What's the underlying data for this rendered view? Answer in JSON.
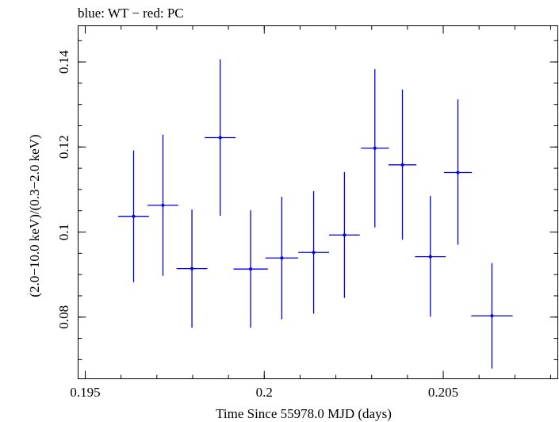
{
  "chart_data": {
    "type": "scatter",
    "title": "blue: WT − red: PC",
    "xlabel": "Time Since 55978.0 MJD (days)",
    "ylabel": "(2.0−10.0 keV)/(0.3−2.0 keV)",
    "xlim": [
      0.1948,
      0.2082
    ],
    "ylim": [
      0.0655,
      0.1485
    ],
    "x_ticks": [
      {
        "value": 0.195,
        "label": "0.195"
      },
      {
        "value": 0.2,
        "label": "0.2"
      },
      {
        "value": 0.205,
        "label": "0.205"
      }
    ],
    "y_ticks": [
      {
        "value": 0.08,
        "label": "0.08"
      },
      {
        "value": 0.1,
        "label": "0.1"
      },
      {
        "value": 0.12,
        "label": "0.12"
      },
      {
        "value": 0.14,
        "label": "0.14"
      }
    ],
    "x_minor_step": 0.001,
    "y_minor_step": 0.005,
    "grid": false,
    "series": [
      {
        "name": "WT",
        "color": "#0000ee",
        "points": [
          {
            "x": 0.19635,
            "xerr": 0.00043,
            "y": 0.1037,
            "ylo": 0.0882,
            "yhi": 0.1192
          },
          {
            "x": 0.19717,
            "xerr": 0.00043,
            "y": 0.1063,
            "ylo": 0.0897,
            "yhi": 0.1229
          },
          {
            "x": 0.19798,
            "xerr": 0.00043,
            "y": 0.0914,
            "ylo": 0.0775,
            "yhi": 0.1053
          },
          {
            "x": 0.19877,
            "xerr": 0.00043,
            "y": 0.1222,
            "ylo": 0.1038,
            "yhi": 0.1406
          },
          {
            "x": 0.19962,
            "xerr": 0.00048,
            "y": 0.0913,
            "ylo": 0.0775,
            "yhi": 0.1051
          },
          {
            "x": 0.20049,
            "xerr": 0.00046,
            "y": 0.0939,
            "ylo": 0.0795,
            "yhi": 0.1083
          },
          {
            "x": 0.20138,
            "xerr": 0.00043,
            "y": 0.0952,
            "ylo": 0.0808,
            "yhi": 0.1096
          },
          {
            "x": 0.20224,
            "xerr": 0.00043,
            "y": 0.0993,
            "ylo": 0.0845,
            "yhi": 0.1141
          },
          {
            "x": 0.20309,
            "xerr": 0.00039,
            "y": 0.1197,
            "ylo": 0.1011,
            "yhi": 0.1383
          },
          {
            "x": 0.20386,
            "xerr": 0.00039,
            "y": 0.1158,
            "ylo": 0.0982,
            "yhi": 0.1335
          },
          {
            "x": 0.20464,
            "xerr": 0.00043,
            "y": 0.0942,
            "ylo": 0.0801,
            "yhi": 0.1085
          },
          {
            "x": 0.20541,
            "xerr": 0.00039,
            "y": 0.114,
            "ylo": 0.097,
            "yhi": 0.1312
          },
          {
            "x": 0.20636,
            "xerr": 0.00058,
            "y": 0.0803,
            "ylo": 0.0679,
            "yhi": 0.0927
          }
        ]
      }
    ]
  }
}
